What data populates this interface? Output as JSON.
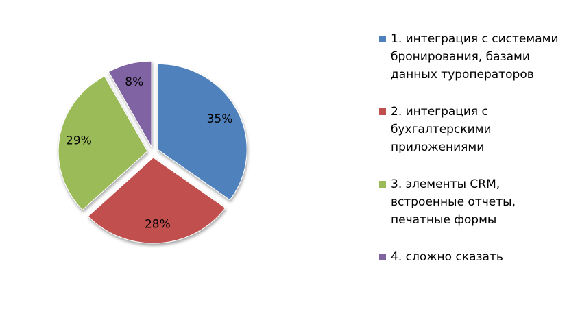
{
  "chart_data": {
    "type": "pie",
    "categories": [
      "1. интеграция с системами бронирования, базами данных туроператоров",
      "2. интеграция с бухгалтерскими приложениями",
      "3. элементы CRM, встроенные отчеты, печатные формы",
      "4. сложно сказать"
    ],
    "values": [
      35,
      28,
      29,
      8
    ],
    "value_labels": [
      "35%",
      "28%",
      "29%",
      "8%"
    ],
    "colors": [
      "#4f81bd",
      "#c0504d",
      "#9bbb59",
      "#8064a2"
    ],
    "legend": "right"
  }
}
